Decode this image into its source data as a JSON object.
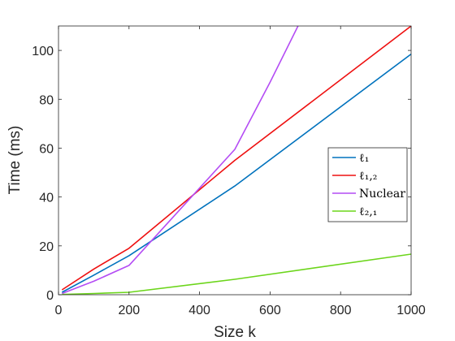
{
  "chart_data": {
    "type": "line",
    "xlabel": "Size  k",
    "ylabel": "Time (ms)",
    "xlim": [
      0,
      1000
    ],
    "ylim": [
      0,
      110
    ],
    "xticks": [
      0,
      200,
      400,
      600,
      800,
      1000
    ],
    "yticks": [
      0,
      20,
      40,
      60,
      80,
      100
    ],
    "grid": false,
    "legend_position": "right",
    "series": [
      {
        "name": "ℓ₁",
        "color": "#0072BD",
        "x": [
          10,
          100,
          200,
          500,
          1000
        ],
        "y": [
          1.0,
          8,
          16,
          44.5,
          98.5
        ]
      },
      {
        "name": "ℓ₁,₂",
        "color": "#EE1010",
        "x": [
          10,
          100,
          200,
          500,
          1000
        ],
        "y": [
          2.0,
          10.5,
          19,
          55,
          110
        ]
      },
      {
        "name": "Nuclear",
        "color": "#B44CF4",
        "x": [
          10,
          100,
          200,
          500,
          600,
          700
        ],
        "y": [
          0.5,
          5.5,
          12,
          59.5,
          87,
          116
        ]
      },
      {
        "name": "ℓ₂,₁",
        "color": "#6BD51A",
        "x": [
          10,
          100,
          200,
          500,
          1000
        ],
        "y": [
          0.1,
          0.5,
          1.0,
          6.3,
          16.6
        ]
      }
    ]
  }
}
